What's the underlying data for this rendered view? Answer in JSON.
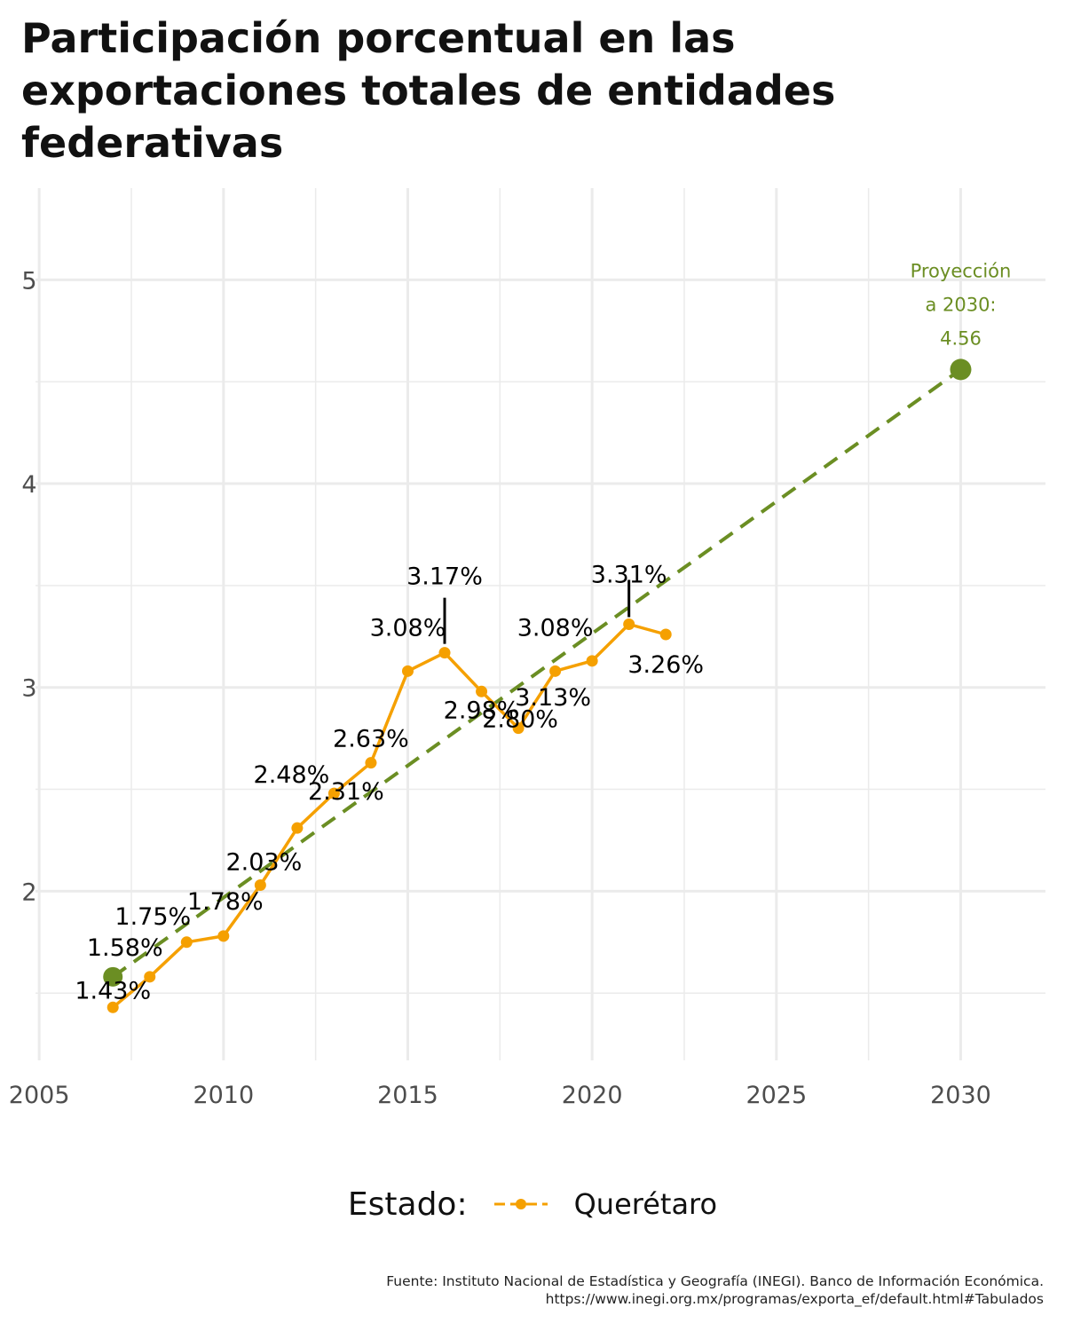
{
  "title": "Participación porcentual en las exportaciones totales de entidades federativas",
  "colors": {
    "series": "#f5a000",
    "projection": "#6b8e23",
    "grid": "#ebebeb"
  },
  "legend": {
    "title": "Estado:",
    "label": "Querétaro"
  },
  "caption": {
    "line1": "Fuente: Instituto Nacional de Estadística y Geografía (INEGI). Banco de Información Económica.",
    "line2": "https://www.inegi.org.mx/programas/exporta_ef/default.html#Tabulados"
  },
  "chart_data": {
    "type": "line",
    "title": "Participación porcentual en las exportaciones totales de entidades federativas",
    "xlabel": "",
    "ylabel": "",
    "xlim": [
      2004.9,
      2032.3
    ],
    "ylim": [
      1.17,
      5.45
    ],
    "x_ticks": [
      2005,
      2010,
      2015,
      2020,
      2025,
      2030
    ],
    "y_ticks": [
      2,
      3,
      4,
      5
    ],
    "grid": true,
    "legend_position": "bottom",
    "series": [
      {
        "name": "Querétaro",
        "x": [
          2007,
          2008,
          2009,
          2010,
          2011,
          2012,
          2013,
          2014,
          2015,
          2016,
          2017,
          2018,
          2019,
          2020,
          2021,
          2022
        ],
        "values": [
          1.43,
          1.58,
          1.75,
          1.78,
          2.03,
          2.31,
          2.48,
          2.63,
          3.08,
          3.17,
          2.98,
          2.8,
          3.08,
          3.13,
          3.31,
          3.26
        ],
        "labels": [
          "1.43%",
          "1.58%",
          "1.75%",
          "1.78%",
          "2.03%",
          "2.31%",
          "2.48%",
          "2.63%",
          "3.08%",
          "3.17%",
          "2.98%",
          "2.80%",
          "3.08%",
          "3.13%",
          "3.31%",
          "3.26%"
        ]
      }
    ],
    "projection": {
      "x": [
        2007,
        2030
      ],
      "values": [
        1.58,
        4.56
      ],
      "label_lines": [
        "Proyección",
        "a 2030:",
        "4.56"
      ]
    }
  }
}
